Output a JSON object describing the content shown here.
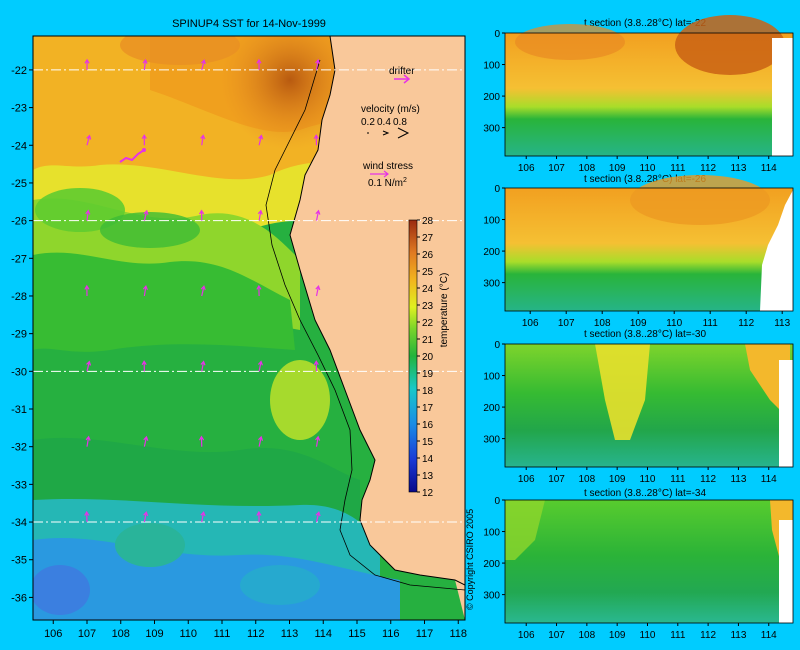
{
  "chart_data": [
    {
      "type": "heatmap",
      "title": "SPINUP4 SST for 14-Nov-1999",
      "x_ticks": [
        106,
        107,
        108,
        109,
        110,
        111,
        112,
        113,
        114,
        115,
        116,
        117,
        118
      ],
      "y_ticks": [
        -22,
        -23,
        -24,
        -25,
        -26,
        -27,
        -28,
        -29,
        -30,
        -31,
        -32,
        -33,
        -34,
        -35,
        -36
      ],
      "xlim": [
        105.4,
        118.2
      ],
      "ylim": [
        -36.6,
        -21.1
      ],
      "section_lines_lat": [
        -22,
        -26,
        -30,
        -34
      ],
      "colorbar": {
        "label": "temperature (°C)",
        "ticks": [
          12,
          13,
          14,
          15,
          16,
          17,
          18,
          19,
          20,
          21,
          22,
          23,
          24,
          25,
          26,
          27,
          28
        ],
        "range": [
          12,
          28
        ]
      },
      "legend": {
        "drifter_label": "drifter",
        "velocity_label": "velocity (m/s)",
        "velocity_values": [
          "0.2",
          "0.4",
          "0.8"
        ],
        "wind_label": "wind stress",
        "wind_value": "0.1 N/m",
        "wind_exp": "2"
      },
      "copyright": "© Copyright CSIRO 2005",
      "colors": {
        "land": "#f9c89a",
        "coast": "#000000",
        "vector": "#e633e6"
      }
    },
    {
      "type": "heatmap",
      "title": "t section (3.8..28°C) lat=-22",
      "x_ticks": [
        106,
        107,
        108,
        109,
        110,
        111,
        112,
        113,
        114
      ],
      "xlim": [
        105.3,
        114.8
      ],
      "y_ticks": [
        0,
        100,
        200,
        300
      ],
      "ylim": [
        0,
        390
      ]
    },
    {
      "type": "heatmap",
      "title": "t section (3.8..28°C) lat=-26",
      "x_ticks": [
        106,
        107,
        108,
        109,
        110,
        111,
        112,
        113
      ],
      "xlim": [
        105.3,
        113.3
      ],
      "y_ticks": [
        0,
        100,
        200,
        300
      ],
      "ylim": [
        0,
        390
      ]
    },
    {
      "type": "heatmap",
      "title": "t section (3.8..28°C) lat=-30",
      "x_ticks": [
        106,
        107,
        108,
        109,
        110,
        111,
        112,
        113,
        114
      ],
      "xlim": [
        105.3,
        114.8
      ],
      "y_ticks": [
        0,
        100,
        200,
        300
      ],
      "ylim": [
        0,
        390
      ]
    },
    {
      "type": "heatmap",
      "title": "t section (3.8..28°C) lat=-34",
      "x_ticks": [
        106,
        107,
        108,
        109,
        110,
        111,
        112,
        113,
        114
      ],
      "xlim": [
        105.3,
        114.8
      ],
      "y_ticks": [
        0,
        100,
        200,
        300
      ],
      "ylim": [
        0,
        390
      ]
    }
  ]
}
